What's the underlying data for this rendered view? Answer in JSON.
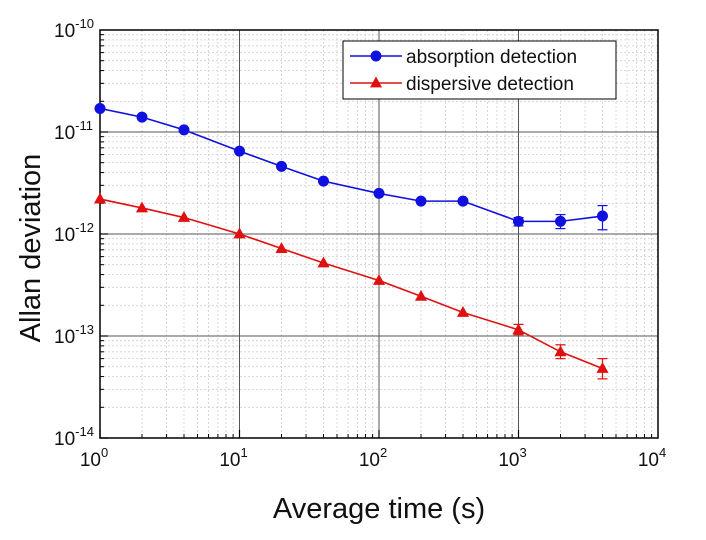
{
  "chart_data": {
    "type": "line",
    "title": "",
    "xlabel": "Average time (s)",
    "ylabel": "Allan deviation",
    "x_scale": "log",
    "y_scale": "log",
    "xlim": [
      1,
      10000
    ],
    "ylim": [
      1e-14,
      1e-10
    ],
    "x_ticks": [
      {
        "base": "10",
        "exp": "0"
      },
      {
        "base": "10",
        "exp": "1"
      },
      {
        "base": "10",
        "exp": "2"
      },
      {
        "base": "10",
        "exp": "3"
      },
      {
        "base": "10",
        "exp": "4"
      }
    ],
    "y_ticks": [
      {
        "base": "10",
        "exp": "-14"
      },
      {
        "base": "10",
        "exp": "-13"
      },
      {
        "base": "10",
        "exp": "-12"
      },
      {
        "base": "10",
        "exp": "-11"
      },
      {
        "base": "10",
        "exp": "-10"
      }
    ],
    "grid": true,
    "legend_position": "top-right",
    "series": [
      {
        "name": "absorption detection",
        "color": "#1010e0",
        "marker": "circle",
        "points": [
          {
            "x": 1,
            "y": 1.7e-11
          },
          {
            "x": 2,
            "y": 1.4e-11
          },
          {
            "x": 4,
            "y": 1.05e-11
          },
          {
            "x": 10,
            "y": 6.5e-12
          },
          {
            "x": 20,
            "y": 4.6e-12
          },
          {
            "x": 40,
            "y": 3.3e-12
          },
          {
            "x": 100,
            "y": 2.5e-12
          },
          {
            "x": 200,
            "y": 2.1e-12
          },
          {
            "x": 400,
            "y": 2.1e-12
          },
          {
            "x": 1000,
            "y": 1.33e-12,
            "err_low": 1.2e-12,
            "err_high": 1.45e-12
          },
          {
            "x": 2000,
            "y": 1.33e-12,
            "err_low": 1.13e-12,
            "err_high": 1.55e-12
          },
          {
            "x": 4000,
            "y": 1.5e-12,
            "err_low": 1.1e-12,
            "err_high": 1.9e-12
          }
        ]
      },
      {
        "name": "dispersive detection",
        "color": "#e01010",
        "marker": "triangle",
        "points": [
          {
            "x": 1,
            "y": 2.2e-12
          },
          {
            "x": 2,
            "y": 1.8e-12
          },
          {
            "x": 4,
            "y": 1.45e-12
          },
          {
            "x": 10,
            "y": 1e-12
          },
          {
            "x": 20,
            "y": 7.2e-13
          },
          {
            "x": 40,
            "y": 5.2e-13
          },
          {
            "x": 100,
            "y": 3.5e-13
          },
          {
            "x": 200,
            "y": 2.45e-13
          },
          {
            "x": 400,
            "y": 1.7e-13
          },
          {
            "x": 1000,
            "y": 1.15e-13,
            "err_low": 1.03e-13,
            "err_high": 1.3e-13
          },
          {
            "x": 2000,
            "y": 7e-14,
            "err_low": 6e-14,
            "err_high": 8.2e-14
          },
          {
            "x": 4000,
            "y": 4.8e-14,
            "err_low": 3.8e-14,
            "err_high": 6e-14
          }
        ]
      }
    ]
  }
}
